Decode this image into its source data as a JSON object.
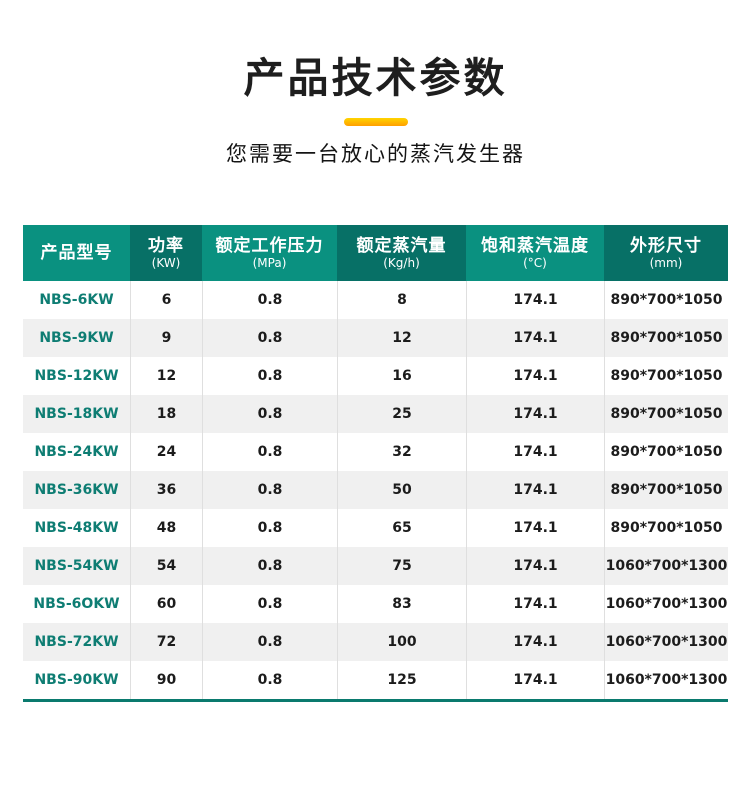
{
  "page": {
    "title": "产品技术参数",
    "subtitle": "您需要一台放心的蒸汽发生器"
  },
  "colors": {
    "header_light": "#0A9180",
    "header_dark": "#077066",
    "model_text": "#0E7D73",
    "row_alt": "#F0F0F0",
    "divider": "#DFDFDF",
    "bottom_border": "#0A7A6E",
    "accent_bar_top": "#FFD400",
    "accent_bar_bottom": "#FF9F00"
  },
  "chart_data": {
    "type": "table",
    "title": "产品技术参数",
    "columns": [
      {
        "label": "产品型号",
        "unit": ""
      },
      {
        "label": "功率",
        "unit": "(KW)"
      },
      {
        "label": "额定工作压力",
        "unit": "(MPa)"
      },
      {
        "label": "额定蒸汽量",
        "unit": "(Kg/h)"
      },
      {
        "label": "饱和蒸汽温度",
        "unit": "(°C)"
      },
      {
        "label": "外形尺寸",
        "unit": "(mm)"
      }
    ],
    "rows": [
      [
        "NBS-6KW",
        "6",
        "0.8",
        "8",
        "174.1",
        "890*700*1050"
      ],
      [
        "NBS-9KW",
        "9",
        "0.8",
        "12",
        "174.1",
        "890*700*1050"
      ],
      [
        "NBS-12KW",
        "12",
        "0.8",
        "16",
        "174.1",
        "890*700*1050"
      ],
      [
        "NBS-18KW",
        "18",
        "0.8",
        "25",
        "174.1",
        "890*700*1050"
      ],
      [
        "NBS-24KW",
        "24",
        "0.8",
        "32",
        "174.1",
        "890*700*1050"
      ],
      [
        "NBS-36KW",
        "36",
        "0.8",
        "50",
        "174.1",
        "890*700*1050"
      ],
      [
        "NBS-48KW",
        "48",
        "0.8",
        "65",
        "174.1",
        "890*700*1050"
      ],
      [
        "NBS-54KW",
        "54",
        "0.8",
        "75",
        "174.1",
        "1060*700*1300"
      ],
      [
        "NBS-6OKW",
        "60",
        "0.8",
        "83",
        "174.1",
        "1060*700*1300"
      ],
      [
        "NBS-72KW",
        "72",
        "0.8",
        "100",
        "174.1",
        "1060*700*1300"
      ],
      [
        "NBS-90KW",
        "90",
        "0.8",
        "125",
        "174.1",
        "1060*700*1300"
      ]
    ]
  }
}
